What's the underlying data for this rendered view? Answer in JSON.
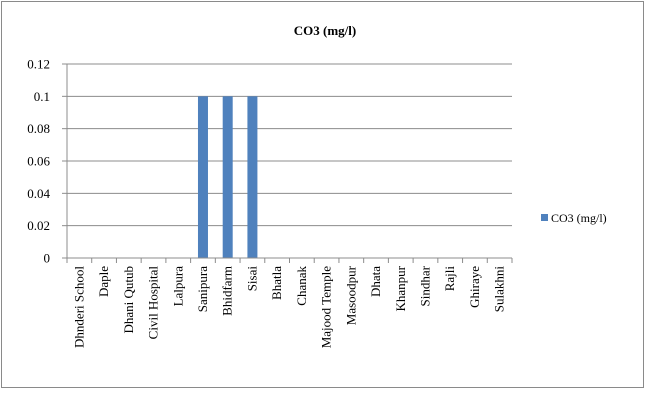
{
  "chart_data": {
    "type": "bar",
    "title": "CO3 (mg/l)",
    "categories": [
      "Dhnderi School",
      "Daple",
      "Dhani Qutub",
      "Civil Hospital",
      "Lalpura",
      "Sanipura",
      "Bhidfarm",
      "Sisai",
      "Bhatla",
      "Chanak",
      "Majood Temple",
      "Masoodpur",
      "Dhata",
      "Khanpur",
      "Sindhar",
      "Rajli",
      "Ghiraye",
      "Sulakhni"
    ],
    "series": [
      {
        "name": "CO3 (mg/l)",
        "values": [
          0,
          0,
          0,
          0,
          0,
          0.1,
          0.1,
          0.1,
          0,
          0,
          0,
          0,
          0,
          0,
          0,
          0,
          0,
          0
        ],
        "color": "#4f81bd"
      }
    ],
    "ylim": [
      0,
      0.12
    ],
    "yticks": [
      "0",
      "0.02",
      "0.04",
      "0.06",
      "0.08",
      "0.1",
      "0.12"
    ],
    "grid": true,
    "legend": "right"
  }
}
